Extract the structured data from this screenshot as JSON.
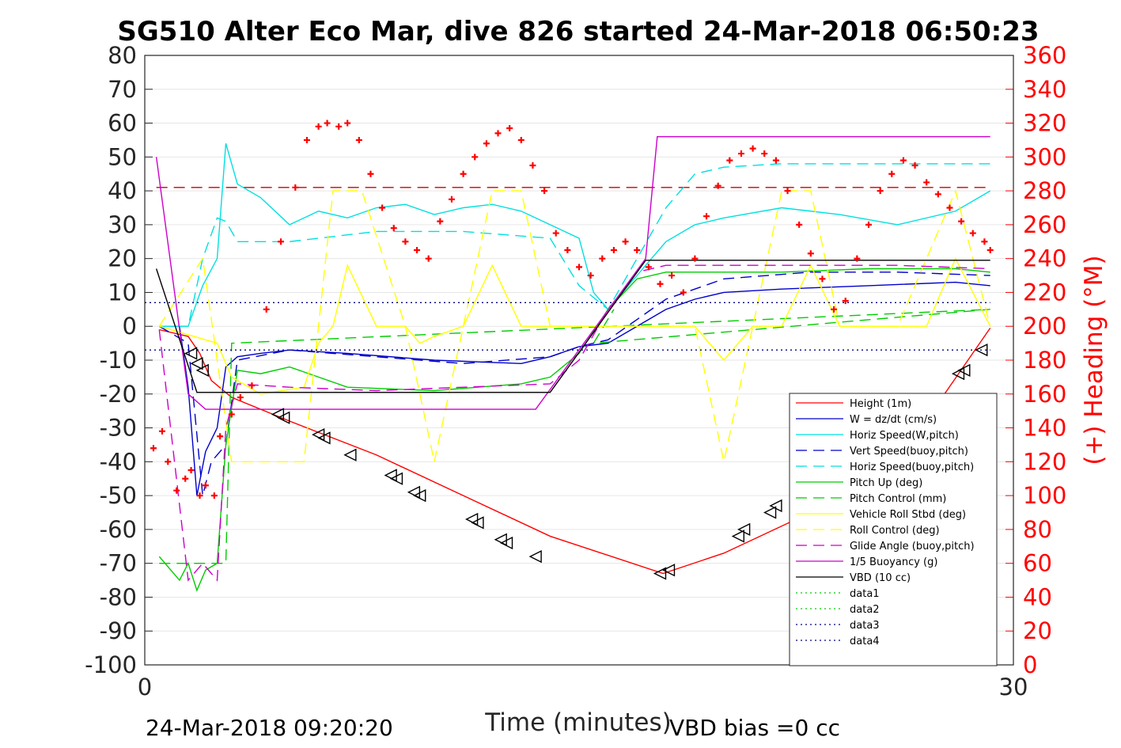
{
  "chart_data": {
    "type": "line",
    "title": "SG510 Alter Eco Mar, dive 826 started 24-Mar-2018 06:50:23",
    "xlabel": "Time (minutes)",
    "ylabel_right": "(+) Heading (°M)",
    "xlim": [
      0,
      30
    ],
    "ylim": [
      -100,
      80
    ],
    "ylim_right": [
      0,
      360
    ],
    "x_ticks": [
      "0",
      "30"
    ],
    "y_ticks": [
      "80",
      "70",
      "60",
      "50",
      "40",
      "30",
      "20",
      "10",
      "0",
      "-10",
      "-20",
      "-30",
      "-40",
      "-50",
      "-60",
      "-70",
      "-80",
      "-90",
      "-100"
    ],
    "y_ticks_right": [
      "360",
      "340",
      "320",
      "300",
      "280",
      "260",
      "240",
      "220",
      "200",
      "180",
      "160",
      "140",
      "120",
      "100",
      "80",
      "60",
      "40",
      "20",
      "0"
    ],
    "grid": "horizontal",
    "legend_position": "bottom-right",
    "footer_left": "24-Mar-2018 09:20:20",
    "footer_right": "VBD bias =0 cc",
    "series": [
      {
        "name": "Height (1m)",
        "color": "#ff0000",
        "style": "solid",
        "x": [
          0.5,
          1.5,
          1.9,
          2.3,
          3,
          5,
          8,
          11,
          14,
          17.9,
          20,
          23,
          26,
          29.2
        ],
        "y": [
          -1,
          -3,
          -8,
          -16,
          -21,
          -28,
          -38,
          -50,
          -62,
          -73,
          -67,
          -55,
          -40,
          -0.5
        ]
      },
      {
        "name": "W = dz/dt (cm/s)",
        "color": "#0000cc",
        "style": "solid",
        "x": [
          0.5,
          1.2,
          1.5,
          1.8,
          2.1,
          2.5,
          2.8,
          3.2,
          4,
          5,
          7,
          10,
          13,
          14,
          15,
          16,
          17,
          18,
          19,
          20,
          22,
          25,
          28,
          29.2
        ],
        "y": [
          0,
          0,
          -18,
          -50,
          -37,
          -30,
          -12,
          -9,
          -8,
          -7,
          -8,
          -10,
          -11,
          -9,
          -6,
          -5,
          0,
          5,
          8,
          10,
          11,
          12,
          13,
          12
        ]
      },
      {
        "name": "Horiz Speed(W,pitch)",
        "color": "#00e0e0",
        "style": "solid",
        "x": [
          0.5,
          1.5,
          2.0,
          2.5,
          2.8,
          3.2,
          4,
          5,
          6,
          7,
          8,
          9,
          10,
          11,
          12,
          13,
          14,
          15,
          15.5,
          16,
          17,
          18,
          19,
          20,
          22,
          24,
          26,
          28,
          29.2
        ],
        "y": [
          0,
          0,
          12,
          20,
          54,
          42,
          38,
          30,
          34,
          32,
          35,
          36,
          33,
          35,
          36,
          34,
          30,
          26,
          10,
          5,
          15,
          25,
          30,
          32,
          35,
          33,
          30,
          34,
          40
        ]
      },
      {
        "name": "Vert Speed(buoy,pitch)",
        "color": "#0000cc",
        "style": "dashed",
        "x": [
          0.5,
          1.5,
          2.0,
          2.3,
          2.8,
          3.2,
          5,
          8,
          11,
          14,
          15,
          16,
          17,
          18,
          20,
          23,
          26,
          29.2
        ],
        "y": [
          0,
          -5,
          -50,
          -40,
          -35,
          -10,
          -7,
          -9,
          -11,
          -9,
          -6,
          -4,
          2,
          8,
          14,
          16,
          16,
          15
        ]
      },
      {
        "name": "Horiz Speed(buoy,pitch)",
        "color": "#00e0e0",
        "style": "dashed",
        "x": [
          0.5,
          1.5,
          2.0,
          2.5,
          2.8,
          3.2,
          5,
          8,
          11,
          14,
          15,
          16,
          17,
          18,
          19,
          20,
          22,
          25,
          28,
          29.2
        ],
        "y": [
          0,
          0,
          20,
          32,
          31,
          25,
          25,
          28,
          28,
          26,
          12,
          5,
          20,
          35,
          45,
          47,
          48,
          48,
          48,
          48
        ]
      },
      {
        "name": "Pitch Up (deg)",
        "color": "#00cc00",
        "style": "solid",
        "x": [
          0.5,
          1.2,
          1.5,
          1.8,
          2.1,
          2.5,
          2.8,
          3.2,
          4,
          5,
          7,
          10,
          13,
          14,
          15,
          16,
          17,
          18,
          19,
          20,
          22,
          25,
          28,
          29.2
        ],
        "y": [
          -68,
          -75,
          -70,
          -78,
          -72,
          -70,
          -35,
          -13,
          -14,
          -12,
          -18,
          -19,
          -17,
          -15,
          -8,
          5,
          14,
          16,
          16,
          16,
          16,
          17,
          17,
          16
        ]
      },
      {
        "name": "Pitch Control (mm)",
        "color": "#00cc00",
        "style": "dashed",
        "x": [
          0.5,
          2.8,
          3.0,
          29.2,
          15.5,
          16.2
        ],
        "y": [
          -70,
          -70,
          -5,
          5,
          -5,
          5
        ]
      },
      {
        "name": "Vehicle Roll Stbd (deg)",
        "color": "#ffff00",
        "style": "solid",
        "x": [
          0.5,
          2.5,
          3,
          4,
          5.5,
          6,
          6.5,
          7,
          8,
          9,
          9.5,
          10,
          11,
          12,
          13,
          14,
          15,
          16,
          17,
          18,
          19,
          20,
          21,
          22,
          23,
          24,
          25,
          26,
          27,
          28,
          29.2
        ],
        "y": [
          0,
          -5,
          -15,
          -20,
          -18,
          -5,
          0,
          18,
          0,
          0,
          -5,
          -3,
          0,
          18,
          0,
          0,
          0,
          0,
          0,
          0,
          0,
          -10,
          0,
          0,
          18,
          0,
          0,
          0,
          0,
          20,
          0
        ]
      },
      {
        "name": "Roll Control (deg)",
        "color": "#ffff00",
        "style": "dashed",
        "x": [
          0.5,
          2.0,
          3.0,
          4.5,
          5.5,
          6.5,
          7.5,
          9,
          10,
          11,
          12,
          13,
          14,
          16,
          19,
          20,
          21,
          22,
          23,
          24,
          26,
          28,
          29.2
        ],
        "y": [
          0,
          20,
          -40,
          -40,
          -40,
          40,
          40,
          0,
          -40,
          0,
          40,
          40,
          0,
          0,
          0,
          -40,
          0,
          40,
          40,
          0,
          0,
          40,
          0
        ]
      },
      {
        "name": "Glide Angle (buoy,pitch)",
        "color": "#cc00cc",
        "style": "dashed",
        "x": [
          0.5,
          1.5,
          2.0,
          2.5,
          2.8,
          3.2,
          5,
          8,
          11,
          14,
          15,
          16,
          17,
          18,
          20,
          23,
          26,
          29.2
        ],
        "y": [
          -1,
          -75,
          -70,
          -75,
          -30,
          -17,
          -18,
          -19,
          -18,
          -17,
          -10,
          5,
          16,
          18,
          18,
          18,
          18,
          17
        ]
      },
      {
        "name": "1/5 Buoyancy (g)",
        "color": "#cc00cc",
        "style": "solid",
        "x": [
          0.4,
          1.5,
          2.1,
          13.5,
          17.3,
          17.7,
          29.2
        ],
        "y": [
          50,
          -20,
          -24.5,
          -24.5,
          20,
          56,
          56
        ]
      },
      {
        "name": "VBD (10 cc)",
        "color": "#000000",
        "style": "solid",
        "x": [
          0.4,
          1.8,
          14,
          17.3,
          17.8,
          29.2
        ],
        "y": [
          17,
          -19.5,
          -19.5,
          19.5,
          19.5,
          19.5
        ]
      },
      {
        "name": "data1",
        "color": "#00cc00",
        "style": "dotted",
        "x": [],
        "y": []
      },
      {
        "name": "data2",
        "color": "#00cc00",
        "style": "dotted",
        "x": [],
        "y": []
      },
      {
        "name": "data3",
        "color": "#000080",
        "style": "dotted",
        "x": [
          0,
          29.2
        ],
        "y": [
          7,
          7
        ]
      },
      {
        "name": "data4",
        "color": "#000080",
        "style": "dotted",
        "x": [
          0,
          29.2
        ],
        "y": [
          -7,
          -7
        ]
      }
    ],
    "reference_line": {
      "y": 41,
      "color": "#cc0000",
      "style": "dashed"
    },
    "heading_points": {
      "color": "#ff0000",
      "x": [
        0.3,
        0.6,
        0.8,
        1.1,
        1.4,
        1.6,
        1.9,
        2.1,
        2.4,
        2.6,
        3.0,
        3.3,
        3.7,
        4.2,
        4.7,
        5.2,
        5.6,
        6.0,
        6.3,
        6.7,
        7.0,
        7.4,
        7.8,
        8.2,
        8.6,
        9.0,
        9.4,
        9.8,
        10.2,
        10.6,
        11.0,
        11.4,
        11.8,
        12.2,
        12.6,
        13.0,
        13.4,
        13.8,
        14.2,
        14.6,
        15.0,
        15.4,
        15.8,
        16.2,
        16.6,
        17.0,
        17.4,
        17.8,
        18.2,
        18.6,
        19.0,
        19.4,
        19.8,
        20.2,
        20.6,
        21.0,
        21.4,
        21.8,
        22.2,
        22.6,
        23.0,
        23.4,
        23.8,
        24.2,
        24.6,
        25.0,
        25.4,
        25.8,
        26.2,
        26.6,
        27.0,
        27.4,
        27.8,
        28.2,
        28.6,
        29.0,
        29.2
      ],
      "y": [
        128,
        138,
        120,
        103,
        110,
        115,
        100,
        106,
        100,
        135,
        148,
        158,
        165,
        210,
        250,
        282,
        310,
        318,
        320,
        318,
        320,
        310,
        290,
        270,
        258,
        250,
        245,
        240,
        262,
        275,
        290,
        300,
        308,
        314,
        317,
        310,
        295,
        280,
        255,
        245,
        235,
        230,
        240,
        245,
        250,
        245,
        235,
        225,
        230,
        220,
        240,
        265,
        283,
        298,
        302,
        305,
        302,
        298,
        280,
        260,
        243,
        228,
        210,
        215,
        240,
        260,
        280,
        290,
        298,
        295,
        285,
        278,
        270,
        262,
        255,
        250,
        245
      ]
    },
    "triangle_markers": {
      "color": "#000000",
      "x": [
        1.6,
        1.8,
        2.0,
        4.6,
        4.8,
        6.0,
        6.2,
        7.1,
        8.5,
        8.7,
        9.3,
        9.5,
        11.3,
        11.5,
        12.3,
        12.5,
        13.5,
        17.8,
        18.1,
        20.5,
        20.7,
        21.6,
        21.8,
        22.6,
        23.7,
        24.0,
        24.9,
        26.3,
        28.1,
        28.3,
        28.9
      ],
      "y": [
        -8,
        -11,
        -13,
        -26,
        -27,
        -32,
        -33,
        -38,
        -44,
        -45,
        -49,
        -50,
        -57,
        -58,
        -63,
        -64,
        -68,
        -73,
        -72,
        -62,
        -60,
        -55,
        -53,
        -51,
        -44,
        -43,
        -36,
        -28,
        -14,
        -13,
        -7
      ]
    }
  }
}
